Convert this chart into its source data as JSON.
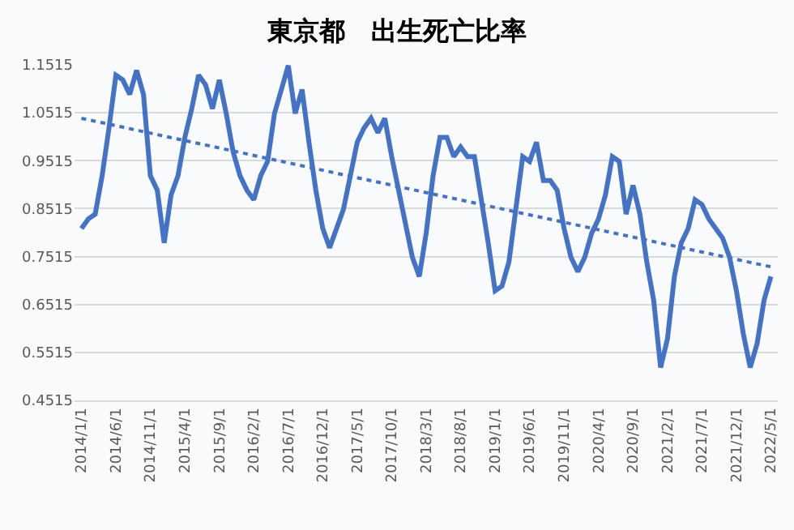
{
  "chart_data": {
    "type": "line",
    "title": "東京都　出生死亡比率",
    "categories": [
      "2014/1/1",
      null,
      null,
      null,
      null,
      "2014/6/1",
      null,
      null,
      null,
      null,
      "2014/11/1",
      null,
      null,
      null,
      null,
      "2015/4/1",
      null,
      null,
      null,
      null,
      "2015/9/1",
      null,
      null,
      null,
      null,
      "2016/2/1",
      null,
      null,
      null,
      null,
      "2016/7/1",
      null,
      null,
      null,
      null,
      "2016/12/1",
      null,
      null,
      null,
      null,
      "2017/5/1",
      null,
      null,
      null,
      null,
      "2017/10/1",
      null,
      null,
      null,
      null,
      "2018/3/1",
      null,
      null,
      null,
      null,
      "2018/8/1",
      null,
      null,
      null,
      null,
      "2019/1/1",
      null,
      null,
      null,
      null,
      "2019/6/1",
      null,
      null,
      null,
      null,
      "2019/11/1",
      null,
      null,
      null,
      null,
      "2020/4/1",
      null,
      null,
      null,
      null,
      "2020/9/1",
      null,
      null,
      null,
      null,
      "2021/2/1",
      null,
      null,
      null,
      null,
      "2021/7/1",
      null,
      null,
      null,
      null,
      "2021/12/1",
      null,
      null,
      null,
      null,
      "2022/5/1"
    ],
    "series": [
      {
        "color": "#4472c4",
        "line_style": "solid",
        "values": [
          0.81,
          0.83,
          0.84,
          0.92,
          1.02,
          1.13,
          1.12,
          1.09,
          1.14,
          1.09,
          0.92,
          0.89,
          0.78,
          0.88,
          0.92,
          1.0,
          1.06,
          1.13,
          1.11,
          1.06,
          1.12,
          1.05,
          0.97,
          0.92,
          0.89,
          0.87,
          0.92,
          0.95,
          1.05,
          1.1,
          1.15,
          1.05,
          1.1,
          0.99,
          0.89,
          0.81,
          0.77,
          0.81,
          0.85,
          0.92,
          0.99,
          1.02,
          1.04,
          1.01,
          1.04,
          0.96,
          0.89,
          0.82,
          0.75,
          0.71,
          0.8,
          0.92,
          1.0,
          1.0,
          0.96,
          0.98,
          0.96,
          0.96,
          0.87,
          0.78,
          0.68,
          0.69,
          0.74,
          0.85,
          0.96,
          0.95,
          0.99,
          0.91,
          0.91,
          0.89,
          0.81,
          0.75,
          0.72,
          0.75,
          0.8,
          0.83,
          0.88,
          0.96,
          0.95,
          0.84,
          0.9,
          0.84,
          0.74,
          0.66,
          0.52,
          0.58,
          0.71,
          0.78,
          0.81,
          0.87,
          0.86,
          0.83,
          0.81,
          0.79,
          0.75,
          0.68,
          0.59,
          0.52,
          0.57,
          0.66,
          0.71
        ]
      },
      {
        "color": "#4472c4",
        "line_style": "dotted",
        "x": [
          "2014/1/1",
          "2022/5/1"
        ],
        "values": [
          1.04,
          0.73
        ]
      }
    ],
    "ylim": [
      0.4515,
      1.1515
    ],
    "yticks": [
      0.4515,
      0.5515,
      0.6515,
      0.7515,
      0.8515,
      0.9515,
      1.0515,
      1.1515
    ],
    "grid": "y",
    "marker": "none"
  }
}
